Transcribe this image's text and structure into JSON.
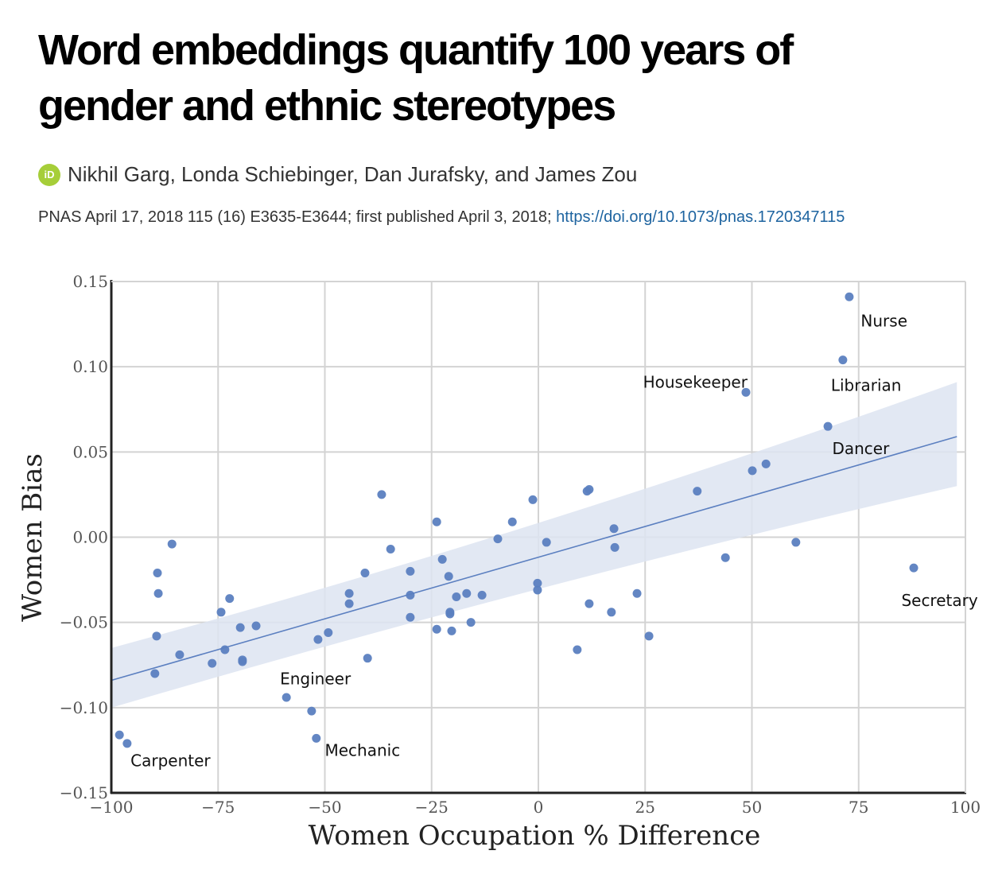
{
  "article": {
    "title": "Word embeddings quantify 100 years of gender and ethnic stereotypes",
    "orcid_icon": "iD",
    "authors": "Nikhil Garg, Londa Schiebinger, Dan Jurafsky, and James Zou",
    "citation": "PNAS April 17, 2018 115 (16) E3635-E3644; first published April 3, 2018; ",
    "doi_link": "https://doi.org/10.1073/pnas.1720347115",
    "colors": {
      "orcid": "#a6ce39",
      "link": "#1e64a0",
      "points": "#5b7fc0",
      "band": "#dde4f1"
    }
  },
  "chart_data": {
    "type": "scatter",
    "title": "",
    "xlabel": "Women Occupation % Difference",
    "ylabel": "Women Bias",
    "xlim": [
      -100,
      100
    ],
    "ylim": [
      -0.15,
      0.15
    ],
    "xticks": [
      -100,
      -75,
      -50,
      -25,
      0,
      25,
      50,
      75,
      100
    ],
    "xtick_labels": [
      "−100",
      "−75",
      "−50",
      "−25",
      "0",
      "25",
      "50",
      "75",
      "100"
    ],
    "yticks": [
      -0.15,
      -0.1,
      -0.05,
      0.0,
      0.05,
      0.1,
      0.15
    ],
    "ytick_labels": [
      "−0.15",
      "−0.10",
      "−0.05",
      "0.00",
      "0.05",
      "0.10",
      "0.15"
    ],
    "grid": true,
    "points": [
      {
        "x": 72.8,
        "y": 0.141,
        "label": "Nurse"
      },
      {
        "x": 71.3,
        "y": 0.104,
        "label": "Librarian"
      },
      {
        "x": 48.6,
        "y": 0.085,
        "label": "Housekeeper"
      },
      {
        "x": 67.8,
        "y": 0.065,
        "label": "Dancer"
      },
      {
        "x": 53.3,
        "y": 0.043
      },
      {
        "x": 50.1,
        "y": 0.039
      },
      {
        "x": 37.2,
        "y": 0.027
      },
      {
        "x": 87.9,
        "y": -0.018,
        "label": "Secretary"
      },
      {
        "x": 60.3,
        "y": -0.003
      },
      {
        "x": 43.8,
        "y": -0.012
      },
      {
        "x": 11.9,
        "y": 0.028
      },
      {
        "x": 11.4,
        "y": 0.027
      },
      {
        "x": 17.7,
        "y": 0.005
      },
      {
        "x": 17.9,
        "y": -0.006
      },
      {
        "x": 1.9,
        "y": -0.003
      },
      {
        "x": -1.3,
        "y": 0.022
      },
      {
        "x": -6.1,
        "y": 0.009
      },
      {
        "x": -9.5,
        "y": -0.001
      },
      {
        "x": -0.2,
        "y": -0.027
      },
      {
        "x": -0.2,
        "y": -0.031
      },
      {
        "x": 11.9,
        "y": -0.039
      },
      {
        "x": 17.1,
        "y": -0.044
      },
      {
        "x": 23.1,
        "y": -0.033
      },
      {
        "x": 25.9,
        "y": -0.058
      },
      {
        "x": 9.1,
        "y": -0.066
      },
      {
        "x": -23.8,
        "y": 0.009
      },
      {
        "x": -22.5,
        "y": -0.013
      },
      {
        "x": -21.0,
        "y": -0.023
      },
      {
        "x": -19.2,
        "y": -0.035
      },
      {
        "x": -16.8,
        "y": -0.033
      },
      {
        "x": -13.2,
        "y": -0.034
      },
      {
        "x": -20.7,
        "y": -0.044
      },
      {
        "x": -20.7,
        "y": -0.045
      },
      {
        "x": -15.8,
        "y": -0.05
      },
      {
        "x": -23.8,
        "y": -0.054
      },
      {
        "x": -20.3,
        "y": -0.055
      },
      {
        "x": -36.7,
        "y": 0.025
      },
      {
        "x": -34.6,
        "y": -0.007
      },
      {
        "x": -30.0,
        "y": -0.02
      },
      {
        "x": -30.0,
        "y": -0.034
      },
      {
        "x": -30.0,
        "y": -0.047
      },
      {
        "x": -40.6,
        "y": -0.021
      },
      {
        "x": -44.3,
        "y": -0.033
      },
      {
        "x": -44.3,
        "y": -0.039
      },
      {
        "x": -40.0,
        "y": -0.071
      },
      {
        "x": -49.2,
        "y": -0.056
      },
      {
        "x": -51.6,
        "y": -0.06
      },
      {
        "x": -59.0,
        "y": -0.094,
        "label": "Engineer"
      },
      {
        "x": -53.1,
        "y": -0.102
      },
      {
        "x": -52.0,
        "y": -0.118,
        "label": "Mechanic"
      },
      {
        "x": -85.8,
        "y": -0.004
      },
      {
        "x": -89.2,
        "y": -0.021
      },
      {
        "x": -89.0,
        "y": -0.033
      },
      {
        "x": -89.4,
        "y": -0.058
      },
      {
        "x": -89.8,
        "y": -0.08
      },
      {
        "x": -84.0,
        "y": -0.069
      },
      {
        "x": -72.3,
        "y": -0.036
      },
      {
        "x": -74.3,
        "y": -0.044
      },
      {
        "x": -69.8,
        "y": -0.053
      },
      {
        "x": -66.1,
        "y": -0.052
      },
      {
        "x": -73.4,
        "y": -0.066
      },
      {
        "x": -76.4,
        "y": -0.074
      },
      {
        "x": -69.3,
        "y": -0.072
      },
      {
        "x": -69.3,
        "y": -0.073
      },
      {
        "x": -98.1,
        "y": -0.116,
        "label": "Carpenter"
      },
      {
        "x": -96.3,
        "y": -0.121
      }
    ],
    "annotations": [
      {
        "text": "Nurse",
        "x": 75.5,
        "y": 0.127
      },
      {
        "text": "Librarian",
        "x": 68.5,
        "y": 0.089
      },
      {
        "text": "Housekeeper",
        "x": 24.5,
        "y": 0.091
      },
      {
        "text": "Dancer",
        "x": 68.8,
        "y": 0.052
      },
      {
        "text": "Secretary",
        "x": 85.0,
        "y": -0.037
      },
      {
        "text": "Engineer",
        "x": -60.5,
        "y": -0.083
      },
      {
        "text": "Mechanic",
        "x": -50.0,
        "y": -0.125
      },
      {
        "text": "Carpenter",
        "x": -95.5,
        "y": -0.131
      }
    ],
    "regression": {
      "x": [
        -100,
        98
      ],
      "y": [
        -0.084,
        0.059
      ],
      "ci_lower": [
        -0.1,
        0.03
      ],
      "ci_upper": [
        -0.065,
        0.091
      ]
    }
  }
}
